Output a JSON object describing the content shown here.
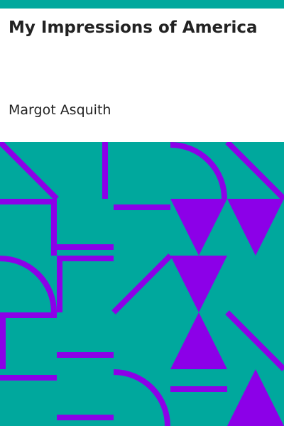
{
  "book": {
    "title": "My Impressions of America",
    "author": "Margot Asquith"
  },
  "colors": {
    "accent_bar": "#00a89d",
    "pattern_background": "#00a89d",
    "pattern_shapes": "#8c00e8",
    "text": "#222222",
    "header_background": "#ffffff"
  }
}
